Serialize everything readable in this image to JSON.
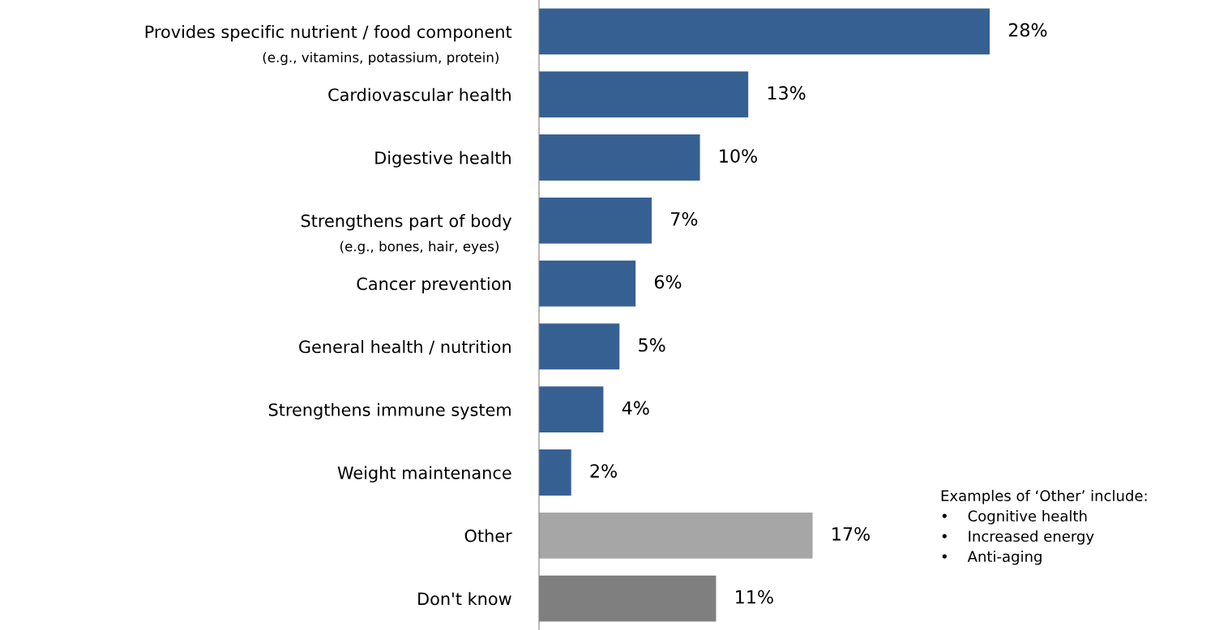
{
  "chart_data": {
    "type": "bar",
    "orientation": "horizontal",
    "categories": [
      "Provides specific nutrient / food component\n(e.g., vitamins, potassium, protein)",
      "Cardiovascular health",
      "Digestive health",
      "Strengthens part of body\n(e.g., bones, hair, eyes)",
      "Cancer prevention",
      "General health / nutrition",
      "Strengthens immune system",
      "Weight maintenance",
      "Other",
      "Don't know"
    ],
    "values": [
      28,
      13,
      10,
      7,
      6,
      5,
      4,
      2,
      17,
      11
    ],
    "value_labels": [
      "28%",
      "13%",
      "10%",
      "7%",
      "6%",
      "5%",
      "4%",
      "2%",
      "17%",
      "11%"
    ],
    "colors": [
      "#376092",
      "#376092",
      "#376092",
      "#376092",
      "#376092",
      "#376092",
      "#376092",
      "#376092",
      "#a6a6a6",
      "#7f7f7f"
    ],
    "annotations": [
      "Examples of ‘Other’ include:\n•    Cognitive health\n•    Increased energy\n•    Anti-aging"
    ],
    "grid": false,
    "legend": false
  }
}
